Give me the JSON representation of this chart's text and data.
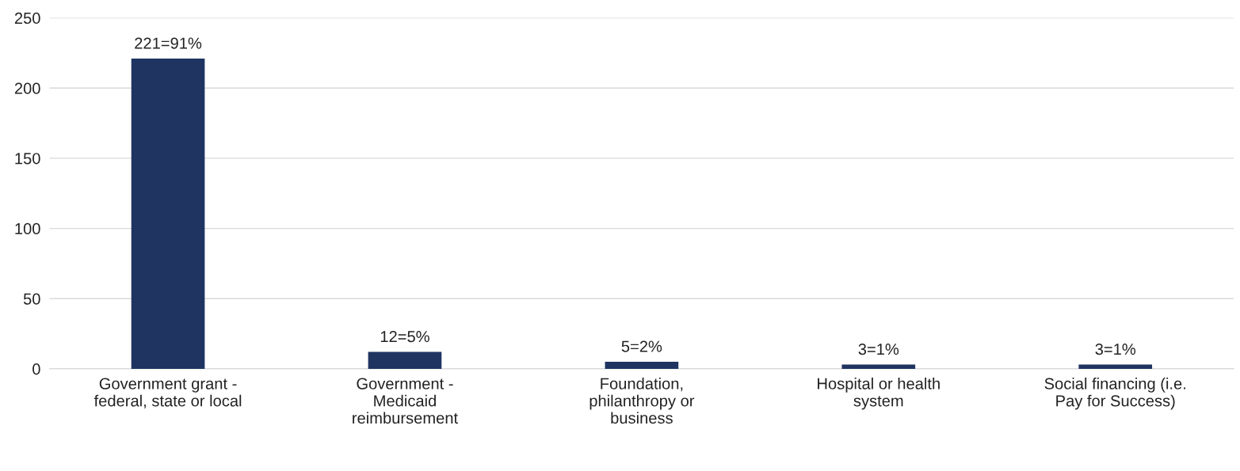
{
  "chart_data": {
    "type": "bar",
    "categories": [
      "Government grant -\nfederal, state or local",
      "Government -\nMedicaid\nreimbursement",
      "Foundation,\nphilanthropy or\nbusiness",
      "Hospital or health\nsystem",
      "Social financing (i.e.\nPay for Success)"
    ],
    "values": [
      221,
      12,
      5,
      3,
      3
    ],
    "value_labels": [
      "221=91%",
      "12=5%",
      "5=2%",
      "3=1%",
      "3=1%"
    ],
    "color": "#1f3461",
    "ylim": [
      0,
      250
    ],
    "yticks": [
      0,
      50,
      100,
      150,
      200,
      250
    ],
    "grid": "y",
    "legend": false
  }
}
